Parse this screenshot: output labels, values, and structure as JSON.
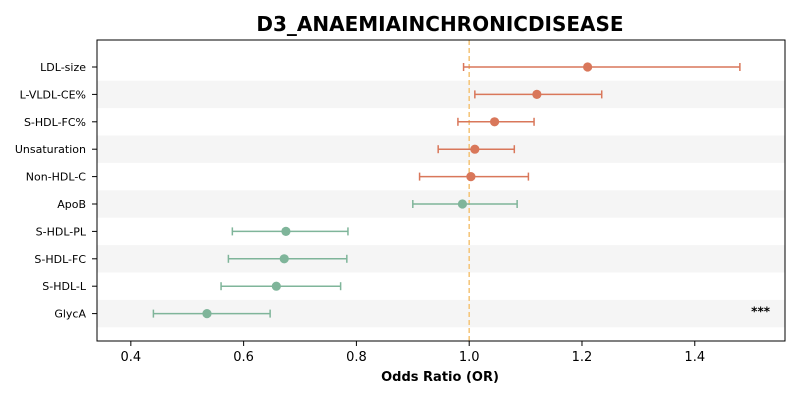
{
  "chart_data": {
    "type": "forest",
    "title": "D3_ANAEMIAINCHRONICDISEASE",
    "xlabel": "Odds Ratio (OR)",
    "xlim": [
      0.34,
      1.56
    ],
    "xticks": [
      0.4,
      0.6,
      0.8,
      1.0,
      1.2,
      1.4
    ],
    "xtick_labels": [
      "0.4",
      "0.6",
      "0.8",
      "1.0",
      "1.2",
      "1.4"
    ],
    "reference_line": 1.0,
    "colors": {
      "positive": "#d9775a",
      "negative": "#7fb59a",
      "reference": "#f5c77e",
      "stripe": "#f5f5f5"
    },
    "rows": [
      {
        "label": "LDL-size",
        "or": 1.21,
        "lo": 0.99,
        "hi": 1.48,
        "annotation": ""
      },
      {
        "label": "L-VLDL-CE%",
        "or": 1.12,
        "lo": 1.01,
        "hi": 1.235,
        "annotation": ""
      },
      {
        "label": "S-HDL-FC%",
        "or": 1.045,
        "lo": 0.98,
        "hi": 1.115,
        "annotation": ""
      },
      {
        "label": "Unsaturation",
        "or": 1.01,
        "lo": 0.945,
        "hi": 1.08,
        "annotation": ""
      },
      {
        "label": "Non-HDL-C",
        "or": 1.003,
        "lo": 0.912,
        "hi": 1.105,
        "annotation": ""
      },
      {
        "label": "ApoB",
        "or": 0.988,
        "lo": 0.9,
        "hi": 1.085,
        "annotation": ""
      },
      {
        "label": "S-HDL-PL",
        "or": 0.675,
        "lo": 0.58,
        "hi": 0.785,
        "annotation": ""
      },
      {
        "label": "S-HDL-FC",
        "or": 0.672,
        "lo": 0.573,
        "hi": 0.783,
        "annotation": ""
      },
      {
        "label": "S-HDL-L",
        "or": 0.658,
        "lo": 0.56,
        "hi": 0.772,
        "annotation": ""
      },
      {
        "label": "GlycA",
        "or": 0.535,
        "lo": 0.44,
        "hi": 0.647,
        "annotation": "***"
      }
    ]
  }
}
